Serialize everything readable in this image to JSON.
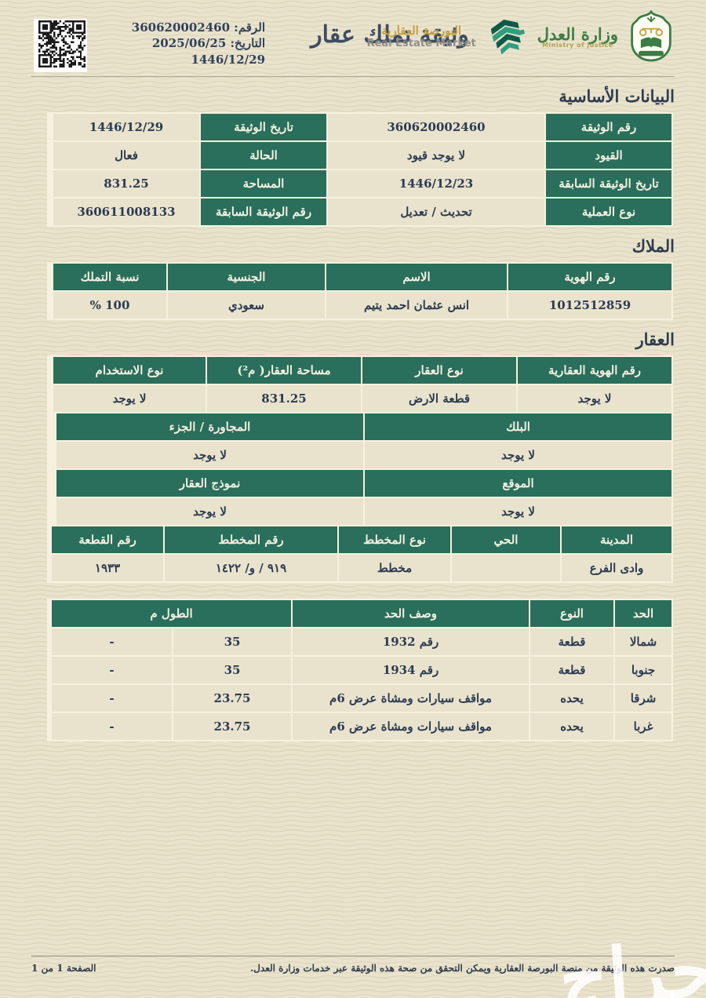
{
  "header": {
    "number_label": "الرقم:",
    "number": "360620002460",
    "date_label": "التاريخ:",
    "date_gregorian": "2025/06/25",
    "date_hijri": "1446/12/29",
    "title": "وثيقة تملك عقار",
    "rem_logo": {
      "ar": "البورصة العقارية",
      "en": "Real Estate Market"
    },
    "moj_logo": {
      "ar": "وزارة العدل",
      "en": "Ministry of justice"
    }
  },
  "basic": {
    "title": "البيانات الأساسية",
    "rows": [
      {
        "lr": "رقم الوثيقة",
        "vr": "360620002460",
        "ll": "تاريخ الوثيقة",
        "vl": "1446/12/29"
      },
      {
        "lr": "القيود",
        "vr": "لا يوجد قيود",
        "ll": "الحالة",
        "vl": "فعال"
      },
      {
        "lr": "تاريخ الوثيقة السابقة",
        "vr": "1446/12/23",
        "ll": "المساحة",
        "vl": "831.25"
      },
      {
        "lr": "نوع العملية",
        "vr": "تحديث / تعديل",
        "ll": "رقم الوثيقة السابقة",
        "vl": "360611008133"
      }
    ]
  },
  "owners": {
    "title": "الملاك",
    "headers": [
      "رقم الهوية",
      "الاسم",
      "الجنسية",
      "نسبة التملك"
    ],
    "rows": [
      [
        "1012512859",
        "انس عثمان احمد يتيم",
        "سعودي",
        "% 100"
      ]
    ]
  },
  "property": {
    "title": "العقار",
    "band1": {
      "headers": [
        "رقم الهوية العقارية",
        "نوع العقار",
        "مساحة العقار( م²)",
        "نوع الاستخدام"
      ],
      "values": [
        "لا يوجد",
        "قطعة الارض",
        "831.25",
        "لا يوجد"
      ]
    },
    "band2": {
      "headers": [
        "البلك",
        "المجاورة / الجزء"
      ],
      "values": [
        "لا يوجد",
        "لا يوجد"
      ]
    },
    "band3": {
      "headers": [
        "الموقع",
        "نموذج العقار"
      ],
      "values": [
        "لا يوجد",
        "لا يوجد"
      ]
    },
    "band4": {
      "headers": [
        "المدينة",
        "الحي",
        "نوع المخطط",
        "رقم المخطط",
        "رقم القطعة"
      ],
      "values": [
        "وادى الفرع",
        "",
        "مخطط",
        "٩١٩ / و/ ١٤٢٢",
        "١٩٣٣"
      ]
    }
  },
  "borders_table": {
    "headers": [
      "الحد",
      "النوع",
      "وصف الحد",
      "الطول م"
    ],
    "rows": [
      [
        "شمالا",
        "قطعة",
        "رقم 1932",
        "35",
        "-"
      ],
      [
        "جنوبا",
        "قطعة",
        "رقم 1934",
        "35",
        "-"
      ],
      [
        "شرقا",
        "يحده",
        "مواقف سيارات ومشاة عرض 6م",
        "23.75",
        "-"
      ],
      [
        "غربا",
        "يحده",
        "مواقف سيارات ومشاة عرض 6م",
        "23.75",
        "-"
      ]
    ]
  },
  "footer": {
    "note": "صدرت هذه الوثيقة من منصة البورصة العقارية ويمكن التحقق من صحة هذه الوثيقة عبر خدمات وزارة العدل.",
    "page": "الصفحة 1 من 1",
    "watermark": "حراج"
  },
  "colors": {
    "header_green": "#2a6e5c",
    "page_beige": "#e9e3cd",
    "gold": "#c79e3e",
    "moj_green": "#3a7d45",
    "ink": "#2c3a52"
  }
}
